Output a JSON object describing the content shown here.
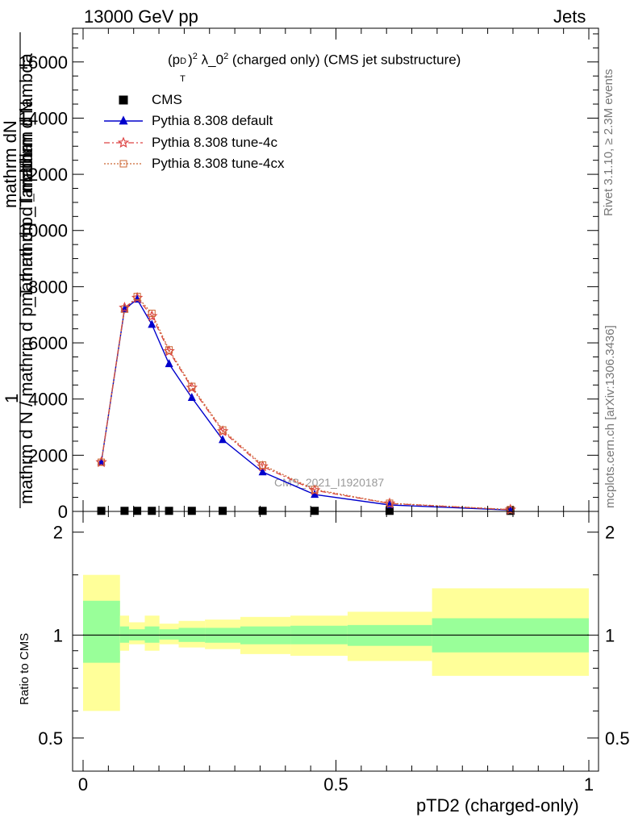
{
  "header": {
    "left": "13000 GeV pp",
    "right": "Jets"
  },
  "side_text": {
    "rivet": "Rivet 3.1.10, ≥ 2.3M events",
    "mcplots": "mcplots.cern.ch [arXiv:1306.3436]"
  },
  "watermark": "CMS_2021_I1920187",
  "chart_data": {
    "type": "line",
    "title": "(p_T^D)^2 λ_0^2 (charged only) (CMS jet substructure)",
    "title_parts": {
      "p": "(p",
      "sup1": "D",
      "sub1": "T",
      "close": ")",
      "sup2": "2",
      "lam": " λ_0",
      "sup3": "2",
      "rest": " (charged only) (CMS jet substructure)"
    },
    "xlabel": "pTD2 (charged-only)",
    "ylabel": {
      "one": "1",
      "numerator": "mathrm dN",
      "denominator_outer": "mathrm d N / mathrm d p_T mathrm d lambda",
      "inner_numerator": "mathrm d N",
      "inner_denominator": "mathrm d p_T mathrm d lambda"
    },
    "xlim": [
      0,
      1
    ],
    "ylim": [
      0,
      17200
    ],
    "x_ticks": [
      "0",
      "0.5",
      "1"
    ],
    "x_tick_values": [
      0,
      0.5,
      1
    ],
    "y_ticks": [
      "0",
      "2000",
      "4000",
      "6000",
      "8000",
      "10000",
      "12000",
      "14000",
      "16000"
    ],
    "y_tick_values": [
      0,
      2000,
      4000,
      6000,
      8000,
      10000,
      12000,
      14000,
      16000
    ],
    "x": [
      0.036,
      0.082,
      0.107,
      0.136,
      0.17,
      0.215,
      0.276,
      0.355,
      0.458,
      0.606,
      0.845
    ],
    "series": [
      {
        "name": "CMS",
        "values": [
          20,
          20,
          20,
          20,
          20,
          20,
          20,
          20,
          20,
          20,
          20
        ],
        "color": "#000000"
      },
      {
        "name": "Pythia 8.308 default",
        "values": [
          1750,
          7200,
          7550,
          6650,
          5250,
          4050,
          2550,
          1400,
          600,
          230,
          50
        ],
        "color": "#0000cc"
      },
      {
        "name": "Pythia 8.308 tune-4c",
        "values": [
          1750,
          7250,
          7600,
          6950,
          5700,
          4400,
          2850,
          1600,
          750,
          280,
          60
        ],
        "color": "#dd4444"
      },
      {
        "name": "Pythia 8.308 tune-4cx",
        "values": [
          1750,
          7200,
          7650,
          7050,
          5750,
          4450,
          2900,
          1650,
          780,
          290,
          65
        ],
        "color": "#cc6633"
      }
    ],
    "legend_position": "top-left",
    "ratio": {
      "ylabel": "Ratio to CMS",
      "ylim": [
        0.4,
        2.3
      ],
      "y_ticks": [
        "0.5",
        "1",
        "2"
      ],
      "y_tick_values": [
        0.5,
        1,
        2
      ],
      "bins": [
        {
          "x0": 0.0,
          "x1": 0.073,
          "inner": [
            0.83,
            1.26
          ],
          "outer": [
            0.6,
            1.5
          ]
        },
        {
          "x0": 0.073,
          "x1": 0.091,
          "inner": [
            0.95,
            1.06
          ],
          "outer": [
            0.9,
            1.14
          ]
        },
        {
          "x0": 0.091,
          "x1": 0.122,
          "inner": [
            0.965,
            1.04
          ],
          "outer": [
            0.94,
            1.09
          ]
        },
        {
          "x0": 0.122,
          "x1": 0.151,
          "inner": [
            0.95,
            1.06
          ],
          "outer": [
            0.9,
            1.14
          ]
        },
        {
          "x0": 0.151,
          "x1": 0.189,
          "inner": [
            0.97,
            1.04
          ],
          "outer": [
            0.94,
            1.08
          ]
        },
        {
          "x0": 0.189,
          "x1": 0.241,
          "inner": [
            0.955,
            1.05
          ],
          "outer": [
            0.92,
            1.1
          ]
        },
        {
          "x0": 0.241,
          "x1": 0.311,
          "inner": [
            0.95,
            1.05
          ],
          "outer": [
            0.91,
            1.11
          ]
        },
        {
          "x0": 0.311,
          "x1": 0.41,
          "inner": [
            0.94,
            1.06
          ],
          "outer": [
            0.88,
            1.13
          ]
        },
        {
          "x0": 0.41,
          "x1": 0.523,
          "inner": [
            0.94,
            1.065
          ],
          "outer": [
            0.87,
            1.14
          ]
        },
        {
          "x0": 0.523,
          "x1": 0.69,
          "inner": [
            0.93,
            1.07
          ],
          "outer": [
            0.84,
            1.17
          ]
        },
        {
          "x0": 0.69,
          "x1": 1.0,
          "inner": [
            0.89,
            1.12
          ],
          "outer": [
            0.76,
            1.37
          ]
        }
      ],
      "inner_color": "#99ff99",
      "outer_color": "#ffff99"
    }
  }
}
